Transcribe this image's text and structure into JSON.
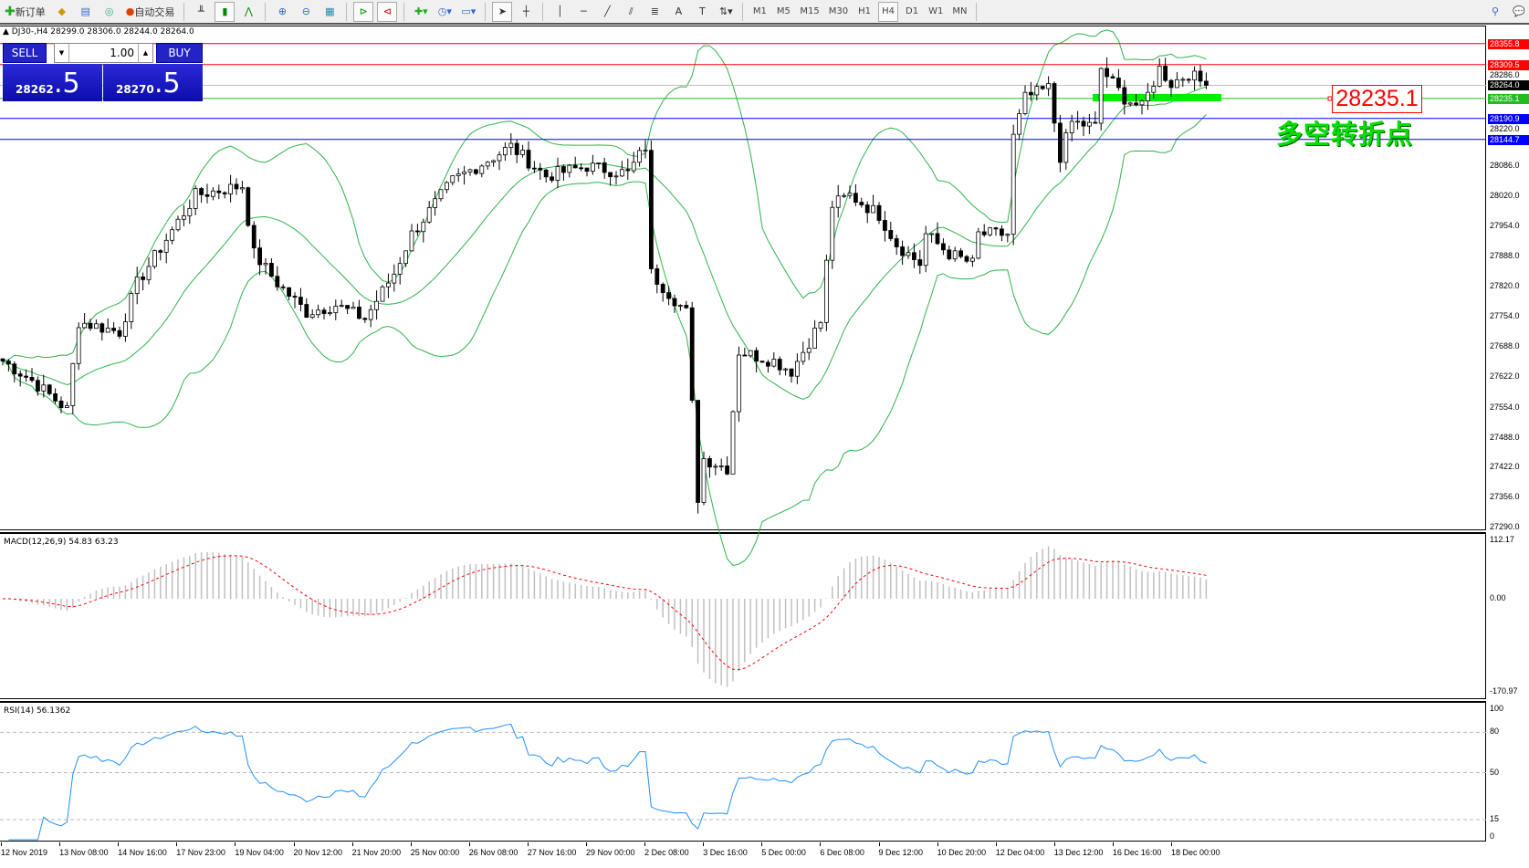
{
  "toolbar": {
    "new_order": "新订单",
    "auto_trade": "自动交易",
    "timeframes": [
      "M1",
      "M5",
      "M15",
      "M30",
      "H1",
      "H4",
      "D1",
      "W1",
      "MN"
    ],
    "active_timeframe": "H4"
  },
  "chart": {
    "title": "DJ30-,H4  28299.0 28306.0 28244.0 28264.0",
    "trade_panel": {
      "sell_label": "SELL",
      "buy_label": "BUY",
      "lot": "1.00",
      "sell_main": "28262",
      "sell_frac": ".5",
      "buy_main": "28270",
      "buy_frac": ".5"
    },
    "annotation_price": "28235.1",
    "annotation_text": "多空转折点",
    "colors": {
      "up_candle": "#ffffff",
      "down_candle": "#000000",
      "bands": "#2db34a",
      "macd_signal": "#ff0000",
      "rsi": "#1e90ff",
      "annotation": "#00e000"
    }
  },
  "chart_data": [
    {
      "type": "candlestick",
      "symbol": "DJ30-",
      "timeframe": "H4",
      "ylim": [
        27290,
        28380
      ],
      "price_ticks": [
        "28286.0",
        "28220.0",
        "28086.0",
        "28020.0",
        "27954.0",
        "27888.0",
        "27820.0",
        "27754.0",
        "27688.0",
        "27622.0",
        "27554.0",
        "27488.0",
        "27422.0",
        "27356.0",
        "27290.0"
      ],
      "levels": [
        {
          "price": "28355.8",
          "color": "#ff0000"
        },
        {
          "price": "28309.5",
          "color": "#ff0000"
        },
        {
          "price": "28264.0",
          "color": "#000000",
          "line": "#c0c0c0"
        },
        {
          "price": "28235.1",
          "color": "#22bb22"
        },
        {
          "price": "28190.9",
          "color": "#0000ff"
        },
        {
          "price": "28144.7",
          "color": "#0000ff"
        }
      ],
      "close_path": [
        [
          0,
          27657
        ],
        [
          5,
          27614
        ],
        [
          11,
          27550
        ],
        [
          13,
          27743
        ],
        [
          20,
          27721
        ],
        [
          23,
          27828
        ],
        [
          33,
          28022
        ],
        [
          41,
          28043
        ],
        [
          43,
          27893
        ],
        [
          47,
          27828
        ],
        [
          52,
          27764
        ],
        [
          57,
          27780
        ],
        [
          62,
          27750
        ],
        [
          67,
          27850
        ],
        [
          70,
          27936
        ],
        [
          77,
          28054
        ],
        [
          87,
          28129
        ],
        [
          93,
          28064
        ],
        [
          100,
          28086
        ],
        [
          107,
          28070
        ],
        [
          110,
          28129
        ],
        [
          111,
          27850
        ],
        [
          117,
          27764
        ],
        [
          119,
          27356
        ],
        [
          120,
          27442
        ],
        [
          124,
          27421
        ],
        [
          126,
          27678
        ],
        [
          132,
          27657
        ],
        [
          135,
          27635
        ],
        [
          140,
          27743
        ],
        [
          142,
          28000
        ],
        [
          145,
          28022
        ],
        [
          150,
          27979
        ],
        [
          153,
          27914
        ],
        [
          157,
          27871
        ],
        [
          158,
          27936
        ],
        [
          162,
          27893
        ],
        [
          166,
          27871
        ],
        [
          167,
          27936
        ],
        [
          172,
          27936
        ],
        [
          173,
          28150
        ],
        [
          175,
          28236
        ],
        [
          179,
          28258
        ],
        [
          181,
          28107
        ],
        [
          183,
          28183
        ],
        [
          187,
          28172
        ],
        [
          188,
          28301
        ],
        [
          192,
          28236
        ],
        [
          195,
          28215
        ],
        [
          198,
          28301
        ],
        [
          200,
          28268
        ],
        [
          203,
          28290
        ],
        [
          206,
          28264
        ]
      ],
      "indicators": [
        "Bollinger Bands"
      ]
    },
    {
      "type": "bar",
      "name": "MACD(12,26,9) 54.83 63.23",
      "ylim": [
        -170.97,
        112.17
      ],
      "ticks": [
        "112.17",
        "0.00",
        "-170.97"
      ]
    },
    {
      "type": "line",
      "name": "RSI(14) 56.1362",
      "ylim": [
        0,
        100
      ],
      "ticks": [
        "100",
        "80",
        "50",
        "15",
        "0"
      ],
      "levels": [
        80,
        50,
        15
      ]
    }
  ],
  "time_axis": [
    "12 Nov 2019",
    "13 Nov 08:00",
    "14 Nov 16:00",
    "17 Nov 23:00",
    "19 Nov 04:00",
    "20 Nov 12:00",
    "21 Nov 20:00",
    "25 Nov 00:00",
    "26 Nov 08:00",
    "27 Nov 16:00",
    "29 Nov 00:00",
    "2 Dec 08:00",
    "3 Dec 16:00",
    "5 Dec 00:00",
    "6 Dec 08:00",
    "9 Dec 12:00",
    "10 Dec 20:00",
    "12 Dec 04:00",
    "13 Dec 12:00",
    "16 Dec 16:00",
    "18 Dec 00:00"
  ]
}
